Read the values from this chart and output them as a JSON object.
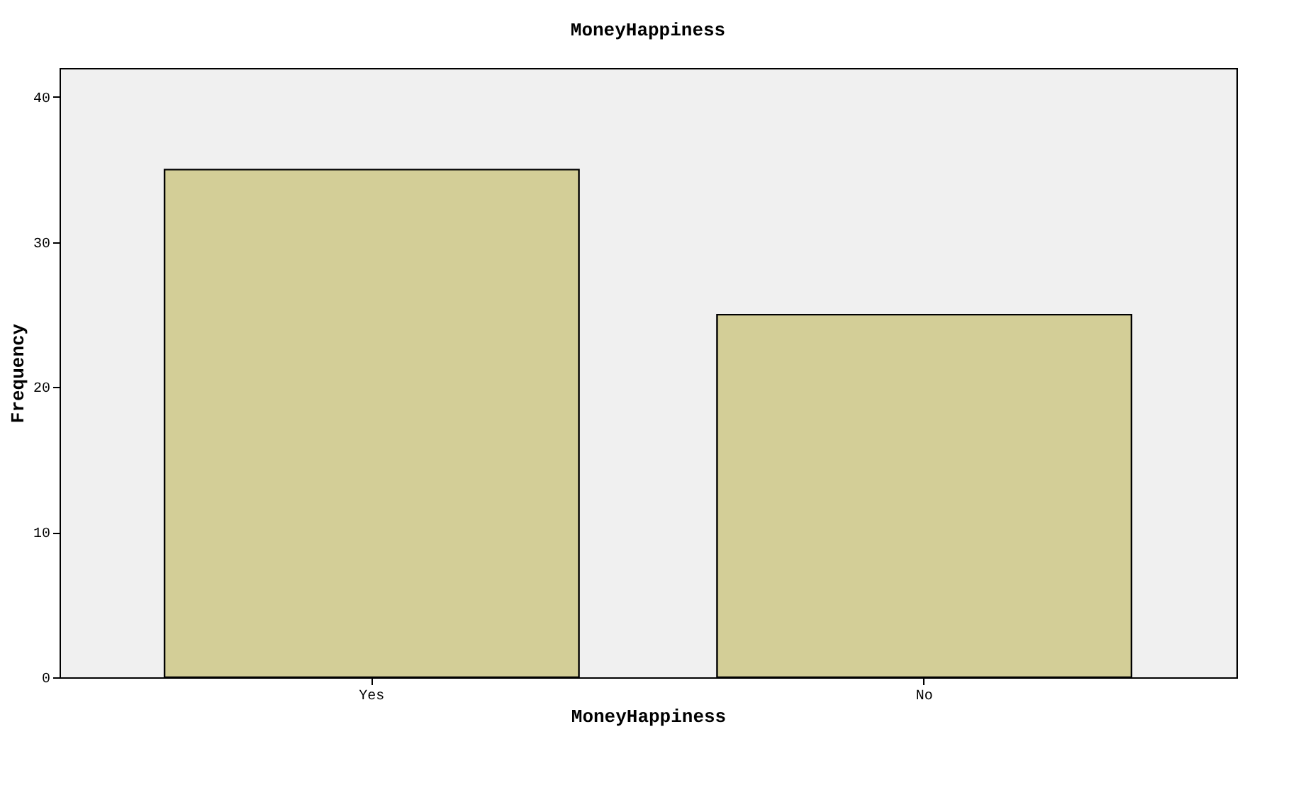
{
  "chart_data": {
    "type": "bar",
    "title": "MoneyHappiness",
    "xlabel": "MoneyHappiness",
    "ylabel": "Frequency",
    "categories": [
      "Yes",
      "No"
    ],
    "values": [
      35,
      25
    ],
    "color": "#d3ce97",
    "ylim": [
      0,
      42
    ],
    "yticks": [
      0,
      10,
      20,
      30,
      40
    ],
    "grid": false
  }
}
